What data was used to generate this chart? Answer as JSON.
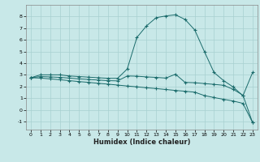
{
  "xlabel": "Humidex (Indice chaleur)",
  "bg_color": "#c8e8e8",
  "line_color": "#1a6b6b",
  "grid_color": "#a8d0d0",
  "xlim": [
    -0.5,
    23.5
  ],
  "ylim": [
    -1.7,
    9.0
  ],
  "yticks": [
    -1,
    0,
    1,
    2,
    3,
    4,
    5,
    6,
    7,
    8
  ],
  "xticks": [
    0,
    1,
    2,
    3,
    4,
    5,
    6,
    7,
    8,
    9,
    10,
    11,
    12,
    13,
    14,
    15,
    16,
    17,
    18,
    19,
    20,
    21,
    22,
    23
  ],
  "line1_x": [
    0,
    1,
    2,
    3,
    4,
    5,
    6,
    7,
    8,
    9,
    10,
    11,
    12,
    13,
    14,
    15,
    16,
    17,
    18,
    19,
    20,
    21,
    22,
    23
  ],
  "line1_y": [
    2.75,
    3.0,
    3.0,
    3.0,
    2.9,
    2.85,
    2.8,
    2.75,
    2.7,
    2.7,
    3.5,
    6.2,
    7.2,
    7.9,
    8.05,
    8.15,
    7.75,
    6.85,
    5.0,
    3.2,
    2.5,
    1.95,
    1.2,
    3.2
  ],
  "line2_x": [
    0,
    1,
    2,
    3,
    4,
    5,
    6,
    7,
    8,
    9,
    10,
    11,
    12,
    13,
    14,
    15,
    16,
    17,
    18,
    19,
    20,
    21,
    22,
    23
  ],
  "line2_y": [
    2.75,
    2.85,
    2.82,
    2.78,
    2.72,
    2.65,
    2.6,
    2.55,
    2.5,
    2.48,
    2.9,
    2.88,
    2.82,
    2.78,
    2.72,
    3.05,
    2.35,
    2.32,
    2.25,
    2.18,
    2.1,
    1.75,
    1.25,
    -1.1
  ],
  "line3_x": [
    0,
    1,
    2,
    3,
    4,
    5,
    6,
    7,
    8,
    9,
    10,
    11,
    12,
    13,
    14,
    15,
    16,
    17,
    18,
    19,
    20,
    21,
    22,
    23
  ],
  "line3_y": [
    2.75,
    2.72,
    2.65,
    2.58,
    2.5,
    2.42,
    2.35,
    2.27,
    2.2,
    2.12,
    2.04,
    1.97,
    1.89,
    1.82,
    1.74,
    1.66,
    1.59,
    1.51,
    1.22,
    1.05,
    0.9,
    0.75,
    0.55,
    -1.1
  ]
}
